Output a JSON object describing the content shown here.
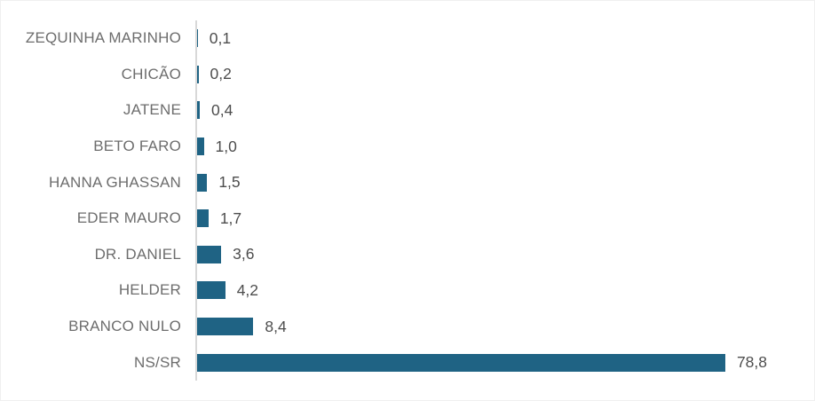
{
  "chart_data": {
    "type": "bar",
    "orientation": "horizontal",
    "title": "",
    "xlabel": "",
    "ylabel": "",
    "grid": false,
    "legend": false,
    "xlim": [
      0,
      92
    ],
    "categories": [
      "ZEQUINHA MARINHO",
      "CHICÃO",
      "JATENE",
      "BETO FARO",
      "HANNA GHASSAN",
      "EDER MAURO",
      "DR. DANIEL",
      "HELDER",
      "BRANCO NULO",
      "NS/SR"
    ],
    "values": [
      0.1,
      0.2,
      0.4,
      1.0,
      1.5,
      1.7,
      3.6,
      4.2,
      8.4,
      78.8
    ],
    "value_labels": [
      "0,1",
      "0,2",
      "0,4",
      "1,0",
      "1,5",
      "1,7",
      "3,6",
      "4,2",
      "8,4",
      "78,8"
    ],
    "colors": {
      "bar": "#1f6384",
      "category_label": "#6d6d6d",
      "value_label": "#4d4d4d",
      "axis_line": "#d8d8d8",
      "background": "#ffffff"
    }
  }
}
